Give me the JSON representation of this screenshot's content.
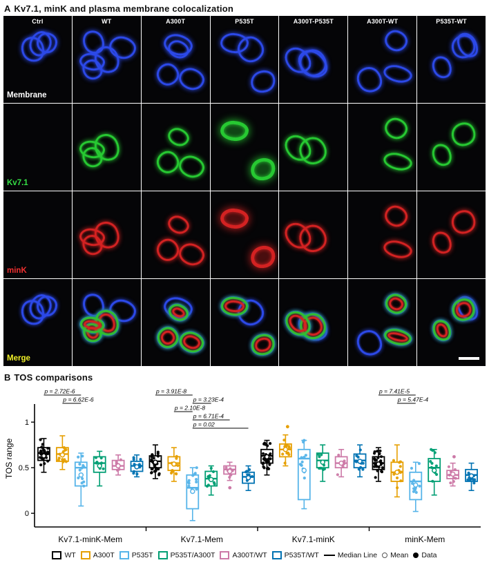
{
  "panel_a": {
    "letter": "A",
    "title": "Kv7.1, minK and plasma membrane colocalization",
    "columns": [
      "Ctrl",
      "WT",
      "A300T",
      "P535T",
      "A300T-P535T",
      "A300T-WT",
      "P535T-WT"
    ],
    "rows": [
      {
        "label": "Membrane",
        "color": "#ffffff",
        "channel": "membrane"
      },
      {
        "label": "Kv7.1",
        "color": "#35e045",
        "channel": "kv71"
      },
      {
        "label": "minK",
        "color": "#f03030",
        "channel": "mink"
      },
      {
        "label": "Merge",
        "color": "#f0f028",
        "channel": "merge"
      }
    ],
    "scale_bar": true
  },
  "panel_b": {
    "letter": "B",
    "title": "TOS comparisons"
  },
  "chart_data": {
    "type": "boxplot",
    "title": "TOS comparisons",
    "ylabel": "TOS range",
    "yticks": [
      0,
      0.5,
      1
    ],
    "ylim": [
      -0.15,
      1.35
    ],
    "categories": [
      "Kv7.1-minK-Mem",
      "Kv7.1-Mem",
      "Kv7.1-minK",
      "minK-Mem"
    ],
    "series": [
      {
        "name": "WT",
        "color": "#000000"
      },
      {
        "name": "A300T",
        "color": "#E69F00"
      },
      {
        "name": "P535T",
        "color": "#56B4E9"
      },
      {
        "name": "P535T/A300T",
        "color": "#009E73"
      },
      {
        "name": "A300T/WT",
        "color": "#CC79A7"
      },
      {
        "name": "P535T/WT",
        "color": "#0072B2"
      }
    ],
    "boxes": [
      [
        {
          "lo": 0.45,
          "q1": 0.58,
          "med": 0.66,
          "q3": 0.72,
          "hi": 0.82,
          "mean": 0.63,
          "n": 30,
          "out": []
        },
        {
          "lo": 0.48,
          "q1": 0.57,
          "med": 0.65,
          "q3": 0.72,
          "hi": 0.85,
          "mean": 0.64,
          "n": 12,
          "out": []
        },
        {
          "lo": 0.08,
          "q1": 0.3,
          "med": 0.5,
          "q3": 0.56,
          "hi": 0.66,
          "mean": 0.42,
          "n": 12,
          "out": []
        },
        {
          "lo": 0.3,
          "q1": 0.45,
          "med": 0.55,
          "q3": 0.62,
          "hi": 0.68,
          "mean": 0.52,
          "n": 10,
          "out": []
        },
        {
          "lo": 0.42,
          "q1": 0.48,
          "med": 0.52,
          "q3": 0.58,
          "hi": 0.64,
          "mean": 0.52,
          "n": 8,
          "out": []
        },
        {
          "lo": 0.4,
          "q1": 0.46,
          "med": 0.52,
          "q3": 0.57,
          "hi": 0.64,
          "mean": 0.51,
          "n": 10,
          "out": []
        }
      ],
      [
        {
          "lo": 0.38,
          "q1": 0.5,
          "med": 0.57,
          "q3": 0.63,
          "hi": 0.75,
          "mean": 0.56,
          "n": 30,
          "out": []
        },
        {
          "lo": 0.35,
          "q1": 0.47,
          "med": 0.55,
          "q3": 0.62,
          "hi": 0.72,
          "mean": 0.54,
          "n": 12,
          "out": []
        },
        {
          "lo": -0.08,
          "q1": 0.05,
          "med": 0.28,
          "q3": 0.42,
          "hi": 0.5,
          "mean": 0.24,
          "n": 12,
          "out": []
        },
        {
          "lo": 0.2,
          "q1": 0.3,
          "med": 0.38,
          "q3": 0.46,
          "hi": 0.52,
          "mean": 0.37,
          "n": 10,
          "out": []
        },
        {
          "lo": 0.36,
          "q1": 0.43,
          "med": 0.48,
          "q3": 0.52,
          "hi": 0.56,
          "mean": 0.46,
          "n": 8,
          "out": [
            0.28
          ]
        },
        {
          "lo": 0.25,
          "q1": 0.33,
          "med": 0.4,
          "q3": 0.45,
          "hi": 0.52,
          "mean": 0.39,
          "n": 10,
          "out": []
        }
      ],
      [
        {
          "lo": 0.42,
          "q1": 0.55,
          "med": 0.63,
          "q3": 0.7,
          "hi": 0.8,
          "mean": 0.62,
          "n": 30,
          "out": []
        },
        {
          "lo": 0.52,
          "q1": 0.62,
          "med": 0.7,
          "q3": 0.76,
          "hi": 0.86,
          "mean": 0.7,
          "n": 12,
          "out": [
            0.95
          ]
        },
        {
          "lo": 0.05,
          "q1": 0.15,
          "med": 0.6,
          "q3": 0.7,
          "hi": 0.8,
          "mean": 0.47,
          "n": 12,
          "out": []
        },
        {
          "lo": 0.35,
          "q1": 0.5,
          "med": 0.58,
          "q3": 0.66,
          "hi": 0.75,
          "mean": 0.56,
          "n": 10,
          "out": []
        },
        {
          "lo": 0.4,
          "q1": 0.5,
          "med": 0.55,
          "q3": 0.62,
          "hi": 0.7,
          "mean": 0.55,
          "n": 8,
          "out": []
        },
        {
          "lo": 0.4,
          "q1": 0.5,
          "med": 0.58,
          "q3": 0.65,
          "hi": 0.75,
          "mean": 0.57,
          "n": 10,
          "out": []
        }
      ],
      [
        {
          "lo": 0.35,
          "q1": 0.48,
          "med": 0.55,
          "q3": 0.62,
          "hi": 0.72,
          "mean": 0.54,
          "n": 30,
          "out": []
        },
        {
          "lo": 0.18,
          "q1": 0.35,
          "med": 0.45,
          "q3": 0.56,
          "hi": 0.75,
          "mean": 0.45,
          "n": 12,
          "out": []
        },
        {
          "lo": 0.02,
          "q1": 0.15,
          "med": 0.35,
          "q3": 0.45,
          "hi": 0.56,
          "mean": 0.31,
          "n": 12,
          "out": []
        },
        {
          "lo": 0.2,
          "q1": 0.35,
          "med": 0.5,
          "q3": 0.6,
          "hi": 0.7,
          "mean": 0.47,
          "n": 10,
          "out": []
        },
        {
          "lo": 0.3,
          "q1": 0.38,
          "med": 0.42,
          "q3": 0.47,
          "hi": 0.55,
          "mean": 0.43,
          "n": 8,
          "out": [
            0.62
          ]
        },
        {
          "lo": 0.25,
          "q1": 0.35,
          "med": 0.42,
          "q3": 0.48,
          "hi": 0.55,
          "mean": 0.41,
          "n": 10,
          "out": []
        }
      ]
    ],
    "brackets": [
      [
        {
          "a": 0,
          "b": 2,
          "label": "p = 2.72E-6"
        },
        {
          "a": 1,
          "b": 2,
          "label": "p = 6.62E-6"
        }
      ],
      [
        {
          "a": 0,
          "b": 2,
          "label": "p = 3.91E-8"
        },
        {
          "a": 2,
          "b": 3,
          "label": "p = 3.23E-4"
        },
        {
          "a": 1,
          "b": 2,
          "label": "p = 2.10E-8"
        },
        {
          "a": 2,
          "b": 4,
          "label": "p = 6.71E-4"
        },
        {
          "a": 2,
          "b": 5,
          "label": "p = 0.02"
        }
      ],
      [],
      [
        {
          "a": 0,
          "b": 2,
          "label": "p = 7.41E-5"
        },
        {
          "a": 1,
          "b": 2,
          "label": "p = 5.47E-4"
        }
      ]
    ],
    "legend_extra": [
      {
        "symbol": "line",
        "label": "Median Line"
      },
      {
        "symbol": "open-circle",
        "label": "Mean"
      },
      {
        "symbol": "filled-circle",
        "label": "Data"
      }
    ]
  }
}
